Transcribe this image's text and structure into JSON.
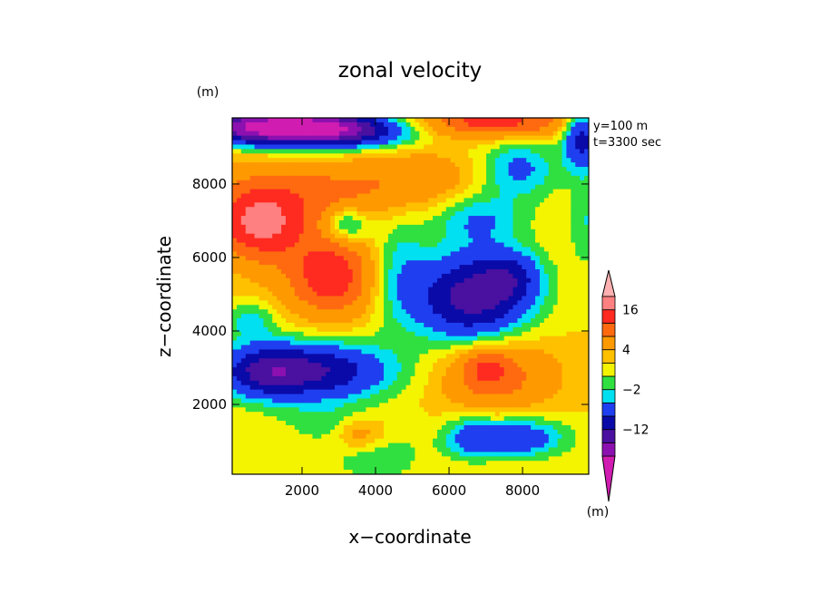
{
  "chart_data": {
    "type": "heatmap",
    "title": "zonal velocity",
    "xlabel": "x−coordinate",
    "ylabel": "z−coordinate",
    "x_unit": "(m)",
    "y_unit": "(m)",
    "annotations": [
      "y=100 m",
      "t=3300 sec"
    ],
    "xlim": [
      100,
      9800
    ],
    "ylim": [
      100,
      9800
    ],
    "xticks": [
      2000,
      4000,
      6000,
      8000
    ],
    "yticks": [
      2000,
      4000,
      6000,
      8000
    ],
    "xtick_labels": [
      "2000",
      "4000",
      "6000",
      "8000"
    ],
    "ytick_labels": [
      "2000",
      "4000",
      "6000",
      "8000"
    ],
    "colorbar": {
      "unit": "(m)",
      "levels": [
        -20,
        -16,
        -12,
        -8,
        -4,
        -2,
        0,
        2,
        4,
        8,
        12,
        16,
        20
      ],
      "labels": [
        {
          "value": 16,
          "text": "16"
        },
        {
          "value": 4,
          "text": "4"
        },
        {
          "value": -2,
          "text": "−2"
        },
        {
          "value": -12,
          "text": "−12"
        }
      ],
      "colors_low_to_high": [
        "#d01cb0",
        "#8c10b0",
        "#4a10a0",
        "#0a0aa8",
        "#1e3ef0",
        "#00e0f0",
        "#30e040",
        "#f4f400",
        "#ffc000",
        "#ff9900",
        "#ff6a10",
        "#ff2a20",
        "#ff8080",
        "#ffb0b0"
      ]
    },
    "blobs": [
      {
        "x": 6600,
        "z": 4900,
        "sx": 1100,
        "sz": 850,
        "a": -16
      },
      {
        "x": 4600,
        "z": 5800,
        "sx": 550,
        "sz": 1100,
        "a": -5
      },
      {
        "x": 2300,
        "z": 2900,
        "sx": 1500,
        "sz": 550,
        "a": -14
      },
      {
        "x": 900,
        "z": 2900,
        "sx": 800,
        "sz": 500,
        "a": -8
      },
      {
        "x": 1200,
        "z": 9550,
        "sx": 1500,
        "sz": 330,
        "a": -24
      },
      {
        "x": 3300,
        "z": 9450,
        "sx": 1300,
        "sz": 320,
        "a": -13
      },
      {
        "x": 7900,
        "z": 8400,
        "sx": 750,
        "sz": 550,
        "a": -7
      },
      {
        "x": 9600,
        "z": 9300,
        "sx": 350,
        "sz": 600,
        "a": -12
      },
      {
        "x": 6800,
        "z": 7050,
        "sx": 900,
        "sz": 500,
        "a": -6
      },
      {
        "x": 3200,
        "z": 6900,
        "sx": 450,
        "sz": 350,
        "a": -9
      },
      {
        "x": 7700,
        "z": 5500,
        "sx": 600,
        "sz": 500,
        "a": -7
      },
      {
        "x": 7900,
        "z": 1100,
        "sx": 900,
        "sz": 400,
        "a": -9
      },
      {
        "x": 4000,
        "z": 600,
        "sx": 900,
        "sz": 500,
        "a": -4
      },
      {
        "x": 6500,
        "z": 1100,
        "sx": 500,
        "sz": 400,
        "a": -6
      },
      {
        "x": 2800,
        "z": 1500,
        "sx": 1000,
        "sz": 400,
        "a": -3
      },
      {
        "x": 800,
        "z": 6900,
        "sx": 800,
        "sz": 650,
        "a": 12
      },
      {
        "x": 2800,
        "z": 5400,
        "sx": 800,
        "sz": 700,
        "a": 12
      },
      {
        "x": 2000,
        "z": 6600,
        "sx": 1500,
        "sz": 900,
        "a": 4
      },
      {
        "x": 2200,
        "z": 7800,
        "sx": 2100,
        "sz": 600,
        "a": 6
      },
      {
        "x": 5200,
        "z": 8200,
        "sx": 1100,
        "sz": 500,
        "a": 4
      },
      {
        "x": 7300,
        "z": 2800,
        "sx": 1100,
        "sz": 700,
        "a": 8
      },
      {
        "x": 7000,
        "z": 3000,
        "sx": 400,
        "sz": 350,
        "a": 6
      },
      {
        "x": 3600,
        "z": 1200,
        "sx": 500,
        "sz": 350,
        "a": 6
      },
      {
        "x": 7200,
        "z": 9700,
        "sx": 1500,
        "sz": 300,
        "a": 12
      },
      {
        "x": 9700,
        "z": 7000,
        "sx": 300,
        "sz": 900,
        "a": -4
      },
      {
        "x": 600,
        "z": 4300,
        "sx": 450,
        "sz": 350,
        "a": -5
      }
    ]
  }
}
